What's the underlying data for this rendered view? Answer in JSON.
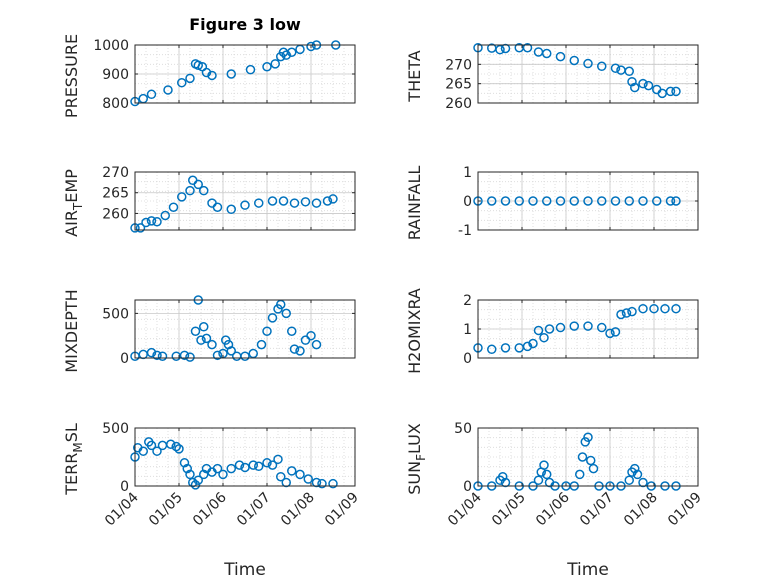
{
  "figure": {
    "title": "Figure 3 low",
    "marker_color": "#0072BD"
  },
  "chart_data": [
    {
      "type": "scatter",
      "ylabel": "PRESSURE",
      "ylim": [
        800,
        1000
      ],
      "yticks": [
        800,
        900,
        1000
      ],
      "yticklabels": [
        "800",
        "900",
        "1000"
      ],
      "xlim": [
        1,
        8.6
      ],
      "show_xticks": false,
      "points": [
        [
          1,
          805
        ],
        [
          1.3,
          815
        ],
        [
          1.6,
          830
        ],
        [
          2.2,
          845
        ],
        [
          2.7,
          870
        ],
        [
          3.0,
          885
        ],
        [
          3.2,
          935
        ],
        [
          3.3,
          930
        ],
        [
          3.45,
          925
        ],
        [
          3.6,
          905
        ],
        [
          3.8,
          895
        ],
        [
          4.5,
          900
        ],
        [
          5.2,
          915
        ],
        [
          5.8,
          925
        ],
        [
          6.1,
          935
        ],
        [
          6.3,
          960
        ],
        [
          6.4,
          975
        ],
        [
          6.5,
          965
        ],
        [
          6.7,
          975
        ],
        [
          7.0,
          985
        ],
        [
          7.4,
          995
        ],
        [
          7.6,
          1000
        ],
        [
          8.3,
          1000
        ]
      ]
    },
    {
      "type": "scatter",
      "ylabel": "THETA",
      "ylim": [
        260,
        275
      ],
      "yticks": [
        260,
        265,
        270
      ],
      "yticklabels": [
        "260",
        "265",
        "270"
      ],
      "xlim": [
        1,
        8.6
      ],
      "show_xticks": false,
      "points": [
        [
          1,
          274.3
        ],
        [
          1.5,
          274.2
        ],
        [
          1.8,
          273.8
        ],
        [
          2.0,
          274.1
        ],
        [
          2.5,
          274.3
        ],
        [
          2.8,
          274.3
        ],
        [
          3.2,
          273.2
        ],
        [
          3.5,
          272.8
        ],
        [
          4.0,
          272.0
        ],
        [
          4.5,
          271.0
        ],
        [
          5.0,
          270.2
        ],
        [
          5.5,
          269.5
        ],
        [
          6.0,
          269.0
        ],
        [
          6.2,
          268.5
        ],
        [
          6.5,
          268.2
        ],
        [
          6.6,
          265.5
        ],
        [
          6.7,
          264.0
        ],
        [
          7.0,
          265.0
        ],
        [
          7.2,
          264.5
        ],
        [
          7.5,
          263.5
        ],
        [
          7.7,
          262.5
        ],
        [
          8.0,
          263.0
        ],
        [
          8.2,
          263.0
        ]
      ]
    },
    {
      "type": "scatter",
      "ylabel": "AIR_T_EMP",
      "ylim": [
        256,
        270
      ],
      "yticks": [
        260,
        265,
        270
      ],
      "yticklabels": [
        "260",
        "265",
        "270"
      ],
      "xlim": [
        1,
        8.6
      ],
      "show_xticks": false,
      "points": [
        [
          1,
          256.5
        ],
        [
          1.2,
          256.5
        ],
        [
          1.4,
          257.8
        ],
        [
          1.6,
          258.2
        ],
        [
          1.8,
          258.0
        ],
        [
          2.1,
          259.5
        ],
        [
          2.4,
          261.5
        ],
        [
          2.7,
          264.0
        ],
        [
          3.0,
          265.5
        ],
        [
          3.1,
          268.0
        ],
        [
          3.3,
          267.0
        ],
        [
          3.5,
          265.5
        ],
        [
          3.8,
          262.5
        ],
        [
          4.0,
          261.5
        ],
        [
          4.5,
          261.0
        ],
        [
          5.0,
          262.0
        ],
        [
          5.5,
          262.5
        ],
        [
          6.0,
          263.0
        ],
        [
          6.4,
          263.0
        ],
        [
          6.8,
          262.5
        ],
        [
          7.2,
          262.8
        ],
        [
          7.6,
          262.5
        ],
        [
          8.0,
          263.0
        ],
        [
          8.2,
          263.5
        ]
      ]
    },
    {
      "type": "scatter",
      "ylabel": "RAINFALL",
      "ylim": [
        -1,
        1
      ],
      "yticks": [
        -1,
        0,
        1
      ],
      "yticklabels": [
        "-1",
        "0",
        "1"
      ],
      "xlim": [
        1,
        8.6
      ],
      "show_xticks": false,
      "points": [
        [
          1,
          0
        ],
        [
          1.5,
          0
        ],
        [
          2,
          0
        ],
        [
          2.5,
          0
        ],
        [
          3,
          0
        ],
        [
          3.5,
          0
        ],
        [
          4,
          0
        ],
        [
          4.5,
          0
        ],
        [
          5,
          0
        ],
        [
          5.5,
          0
        ],
        [
          6,
          0
        ],
        [
          6.5,
          0
        ],
        [
          7,
          0
        ],
        [
          7.5,
          0
        ],
        [
          8,
          0
        ],
        [
          8.2,
          0
        ]
      ]
    },
    {
      "type": "scatter",
      "ylabel": "MIXDEPTH",
      "ylim": [
        0,
        650
      ],
      "yticks": [
        0,
        500
      ],
      "yticklabels": [
        "0",
        "500"
      ],
      "xlim": [
        1,
        8.6
      ],
      "show_xticks": false,
      "points": [
        [
          1,
          20
        ],
        [
          1.3,
          40
        ],
        [
          1.6,
          60
        ],
        [
          1.8,
          30
        ],
        [
          2.0,
          20
        ],
        [
          2.5,
          20
        ],
        [
          2.8,
          30
        ],
        [
          3.0,
          10
        ],
        [
          3.2,
          300
        ],
        [
          3.3,
          650
        ],
        [
          3.4,
          200
        ],
        [
          3.5,
          350
        ],
        [
          3.6,
          220
        ],
        [
          3.8,
          150
        ],
        [
          4.0,
          30
        ],
        [
          4.2,
          50
        ],
        [
          4.3,
          200
        ],
        [
          4.4,
          150
        ],
        [
          4.5,
          80
        ],
        [
          4.7,
          20
        ],
        [
          5.0,
          20
        ],
        [
          5.3,
          50
        ],
        [
          5.6,
          150
        ],
        [
          5.8,
          300
        ],
        [
          6.0,
          450
        ],
        [
          6.2,
          550
        ],
        [
          6.3,
          600
        ],
        [
          6.5,
          500
        ],
        [
          6.7,
          300
        ],
        [
          6.8,
          100
        ],
        [
          7.0,
          80
        ],
        [
          7.2,
          200
        ],
        [
          7.4,
          250
        ],
        [
          7.6,
          150
        ]
      ]
    },
    {
      "type": "scatter",
      "ylabel": "H2OMIXRA",
      "ylim": [
        0,
        2
      ],
      "yticks": [
        0,
        1,
        2
      ],
      "yticklabels": [
        "0",
        "1",
        "2"
      ],
      "xlim": [
        1,
        8.6
      ],
      "show_xticks": false,
      "points": [
        [
          1,
          0.35
        ],
        [
          1.5,
          0.3
        ],
        [
          2.0,
          0.35
        ],
        [
          2.5,
          0.35
        ],
        [
          2.8,
          0.4
        ],
        [
          3.0,
          0.5
        ],
        [
          3.2,
          0.95
        ],
        [
          3.4,
          0.7
        ],
        [
          3.6,
          1.0
        ],
        [
          4.0,
          1.05
        ],
        [
          4.5,
          1.1
        ],
        [
          5.0,
          1.1
        ],
        [
          5.5,
          1.05
        ],
        [
          5.8,
          0.85
        ],
        [
          6.0,
          0.9
        ],
        [
          6.2,
          1.5
        ],
        [
          6.4,
          1.55
        ],
        [
          6.6,
          1.6
        ],
        [
          7.0,
          1.7
        ],
        [
          7.4,
          1.7
        ],
        [
          7.8,
          1.7
        ],
        [
          8.2,
          1.7
        ]
      ]
    },
    {
      "type": "scatter",
      "ylabel": "TERR_M SL",
      "ylim": [
        0,
        500
      ],
      "yticks": [
        0,
        500
      ],
      "yticklabels": [
        "0",
        "500"
      ],
      "xlim": [
        1,
        8.6
      ],
      "show_xticks": true,
      "points": [
        [
          1,
          250
        ],
        [
          1.1,
          330
        ],
        [
          1.3,
          300
        ],
        [
          1.5,
          380
        ],
        [
          1.6,
          350
        ],
        [
          1.8,
          300
        ],
        [
          2.0,
          350
        ],
        [
          2.3,
          360
        ],
        [
          2.5,
          340
        ],
        [
          2.6,
          320
        ],
        [
          2.8,
          200
        ],
        [
          2.9,
          150
        ],
        [
          3.0,
          100
        ],
        [
          3.1,
          30
        ],
        [
          3.2,
          10
        ],
        [
          3.3,
          50
        ],
        [
          3.5,
          100
        ],
        [
          3.6,
          150
        ],
        [
          3.8,
          120
        ],
        [
          4.0,
          150
        ],
        [
          4.2,
          100
        ],
        [
          4.5,
          150
        ],
        [
          4.8,
          180
        ],
        [
          5.0,
          160
        ],
        [
          5.3,
          180
        ],
        [
          5.5,
          170
        ],
        [
          5.8,
          200
        ],
        [
          6.0,
          180
        ],
        [
          6.2,
          230
        ],
        [
          6.3,
          80
        ],
        [
          6.5,
          30
        ],
        [
          6.7,
          130
        ],
        [
          7.0,
          100
        ],
        [
          7.3,
          60
        ],
        [
          7.6,
          30
        ],
        [
          7.8,
          20
        ],
        [
          8.2,
          20
        ]
      ]
    },
    {
      "type": "scatter",
      "ylabel": "SUN_F LUX",
      "ylim": [
        0,
        50
      ],
      "yticks": [
        0,
        50
      ],
      "yticklabels": [
        "0",
        "50"
      ],
      "xlim": [
        1,
        8.6
      ],
      "show_xticks": true,
      "points": [
        [
          1,
          0
        ],
        [
          1.5,
          0
        ],
        [
          1.8,
          5
        ],
        [
          1.9,
          8
        ],
        [
          2.0,
          3
        ],
        [
          2.5,
          0
        ],
        [
          3.0,
          0
        ],
        [
          3.2,
          5
        ],
        [
          3.3,
          12
        ],
        [
          3.4,
          18
        ],
        [
          3.5,
          10
        ],
        [
          3.6,
          3
        ],
        [
          3.8,
          0
        ],
        [
          4.2,
          0
        ],
        [
          4.5,
          0
        ],
        [
          4.7,
          10
        ],
        [
          4.8,
          25
        ],
        [
          4.9,
          38
        ],
        [
          5.0,
          42
        ],
        [
          5.1,
          22
        ],
        [
          5.2,
          15
        ],
        [
          5.4,
          0
        ],
        [
          5.8,
          0
        ],
        [
          6.2,
          0
        ],
        [
          6.5,
          5
        ],
        [
          6.6,
          12
        ],
        [
          6.7,
          15
        ],
        [
          6.8,
          10
        ],
        [
          7.0,
          3
        ],
        [
          7.3,
          0
        ],
        [
          7.8,
          0
        ],
        [
          8.2,
          0
        ]
      ]
    }
  ],
  "xticks": [
    1,
    2.6,
    4.2,
    5.8,
    7.4,
    9
  ],
  "xticklabels": [
    "01/04",
    "01/05",
    "01/06",
    "01/07",
    "01/08",
    "01/09"
  ],
  "xlabel": "Time"
}
